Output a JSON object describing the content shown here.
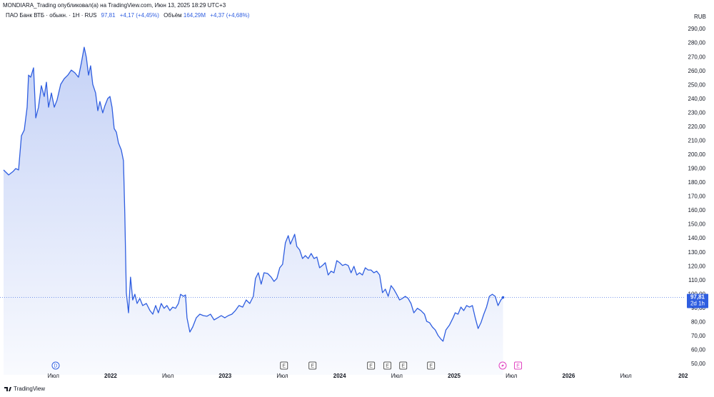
{
  "header": "MONDIARA_Trading опубликовал(а) на TradingView.com, Июн 13, 2025 18:29 UTC+3",
  "chart_data": {
    "type": "area",
    "x": [
      2021.065,
      2021.109,
      2021.146,
      2021.171,
      2021.196,
      2021.221,
      2021.246,
      2021.271,
      2021.283,
      2021.302,
      2021.327,
      2021.346,
      2021.37,
      2021.395,
      2021.42,
      2021.439,
      2021.458,
      2021.483,
      2021.508,
      2021.532,
      2021.564,
      2021.595,
      2021.626,
      2021.657,
      2021.688,
      2021.719,
      2021.744,
      2021.769,
      2021.788,
      2021.807,
      2021.825,
      2021.844,
      2021.869,
      2021.888,
      2021.906,
      2021.931,
      2021.95,
      2021.975,
      2021.994,
      2022.012,
      2022.031,
      2022.05,
      2022.068,
      2022.093,
      2022.112,
      2022.124,
      2022.137,
      2022.156,
      2022.174,
      2022.193,
      2022.212,
      2022.231,
      2022.255,
      2022.28,
      2022.312,
      2022.343,
      2022.368,
      2022.393,
      2022.417,
      2022.442,
      2022.467,
      2022.492,
      2022.517,
      2022.542,
      2022.567,
      2022.592,
      2022.611,
      2022.636,
      2022.654,
      2022.667,
      2022.692,
      2022.717,
      2022.748,
      2022.779,
      2022.81,
      2022.841,
      2022.872,
      2022.903,
      2022.935,
      2022.966,
      2022.997,
      2023.028,
      2023.059,
      2023.09,
      2023.121,
      2023.153,
      2023.184,
      2023.215,
      2023.246,
      2023.265,
      2023.29,
      2023.315,
      2023.34,
      2023.371,
      2023.402,
      2023.427,
      2023.452,
      2023.477,
      2023.502,
      2023.526,
      2023.551,
      2023.57,
      2023.589,
      2023.607,
      2023.626,
      2023.651,
      2023.676,
      2023.701,
      2023.726,
      2023.751,
      2023.776,
      2023.801,
      2023.825,
      2023.85,
      2023.875,
      2023.9,
      2023.925,
      2023.95,
      2023.975,
      2024.0,
      2024.025,
      2024.05,
      2024.075,
      2024.1,
      2024.125,
      2024.15,
      2024.174,
      2024.199,
      2024.224,
      2024.249,
      2024.274,
      2024.299,
      2024.324,
      2024.349,
      2024.374,
      2024.399,
      2024.424,
      2024.449,
      2024.473,
      2024.498,
      2024.523,
      2024.548,
      2024.573,
      2024.598,
      2024.623,
      2024.648,
      2024.679,
      2024.71,
      2024.741,
      2024.76,
      2024.785,
      2024.81,
      2024.835,
      2024.86,
      2024.885,
      2024.903,
      2024.928,
      2024.96,
      2024.991,
      2025.009,
      2025.034,
      2025.059,
      2025.084,
      2025.109,
      2025.134,
      2025.159,
      2025.184,
      2025.209,
      2025.234,
      2025.259,
      2025.283,
      2025.308,
      2025.333,
      2025.358,
      2025.383,
      2025.408,
      2025.427
    ],
    "series": [
      {
        "name": "ПАО Банк ВТБ · обыкн. · 1H · RUS",
        "color": "#2f5ee0",
        "values": [
          189.2,
          185.6,
          188.0,
          190.2,
          189.2,
          213.7,
          217.8,
          234.2,
          257.2,
          255.7,
          262.4,
          226.5,
          234.2,
          249.6,
          241.9,
          252.1,
          234.2,
          244.4,
          234.2,
          239.3,
          250.6,
          254.7,
          257.2,
          260.8,
          258.8,
          255.7,
          265.9,
          277.2,
          270.0,
          257.2,
          263.9,
          250.6,
          244.4,
          231.7,
          238.3,
          230.1,
          235.2,
          240.4,
          241.9,
          234.2,
          218.9,
          216.3,
          208.6,
          203.5,
          195.8,
          157.5,
          101.2,
          86.8,
          112.4,
          96.0,
          100.1,
          93.5,
          97.1,
          92.0,
          93.5,
          88.4,
          85.8,
          92.0,
          86.8,
          93.5,
          90.0,
          92.0,
          88.4,
          90.9,
          90.0,
          93.5,
          100.1,
          98.6,
          99.6,
          83.2,
          73.0,
          76.6,
          83.2,
          85.8,
          84.8,
          84.3,
          85.8,
          81.7,
          83.2,
          84.8,
          83.2,
          84.8,
          85.8,
          88.4,
          92.0,
          90.9,
          96.0,
          93.5,
          98.6,
          111.4,
          115.5,
          107.3,
          115.5,
          115.0,
          112.4,
          109.3,
          111.4,
          119.1,
          121.6,
          137.0,
          142.1,
          136.0,
          139.6,
          143.1,
          134.4,
          131.9,
          125.7,
          127.8,
          125.7,
          129.3,
          125.7,
          126.8,
          119.1,
          120.7,
          122.7,
          113.9,
          116.6,
          115.5,
          124.2,
          122.7,
          120.7,
          121.6,
          120.7,
          115.5,
          120.1,
          113.9,
          115.5,
          113.9,
          119.1,
          117.5,
          117.5,
          115.5,
          116.6,
          113.9,
          101.2,
          103.7,
          98.6,
          106.3,
          103.7,
          100.1,
          96.0,
          97.1,
          98.6,
          97.1,
          93.5,
          86.8,
          90.0,
          88.4,
          85.8,
          80.7,
          79.7,
          76.6,
          74.5,
          70.5,
          67.9,
          66.4,
          74.5,
          78.1,
          83.2,
          86.8,
          85.8,
          90.9,
          88.4,
          92.0,
          90.9,
          92.0,
          83.2,
          75.5,
          79.7,
          85.8,
          90.9,
          98.6,
          100.1,
          98.6,
          92.0,
          96.0,
          97.81
        ]
      }
    ],
    "xlim": [
      2021.065,
      2027.02
    ],
    "xticks": [
      {
        "value": 2021.5,
        "label": "Июл"
      },
      2022,
      {
        "value": 2022.5,
        "label": "Июл"
      },
      2023,
      {
        "value": 2023.5,
        "label": "Июл"
      },
      2024,
      {
        "value": 2024.5,
        "label": "Июл"
      },
      2025,
      {
        "value": 2025.5,
        "label": "Июл"
      },
      2026,
      {
        "value": 2026.5,
        "label": "Июл"
      },
      {
        "value": 2027,
        "label": "202"
      }
    ],
    "ylim": [
      42.3,
      296.7
    ],
    "yticks": [
      {
        "value": 50,
        "label": "50,00"
      },
      {
        "value": 60,
        "label": "60,00"
      },
      {
        "value": 70,
        "label": "70,00"
      },
      {
        "value": 80,
        "label": "80,00"
      },
      {
        "value": 90,
        "label": "90,00"
      },
      {
        "value": 100,
        "label": "100,00"
      },
      {
        "value": 110,
        "label": "110,00"
      },
      {
        "value": 120,
        "label": "120,00"
      },
      {
        "value": 130,
        "label": "130,00"
      },
      {
        "value": 140,
        "label": "140,00"
      },
      {
        "value": 150,
        "label": "150,00"
      },
      {
        "value": 160,
        "label": "160,00"
      },
      {
        "value": 170,
        "label": "170,00"
      },
      {
        "value": 180,
        "label": "180,00"
      },
      {
        "value": 190,
        "label": "190,00"
      },
      {
        "value": 200,
        "label": "200,00"
      },
      {
        "value": 210,
        "label": "210,00"
      },
      {
        "value": 220,
        "label": "220,00"
      },
      {
        "value": 230,
        "label": "230,00"
      },
      {
        "value": 240,
        "label": "240,00"
      },
      {
        "value": 250,
        "label": "250,00"
      },
      {
        "value": 260,
        "label": "260,00"
      },
      {
        "value": 270,
        "label": "270,00"
      },
      {
        "value": 280,
        "label": "280,00"
      },
      {
        "value": 290,
        "label": "290,00"
      }
    ],
    "y_unit": "RUB",
    "last_price": {
      "value": 97.81,
      "label": "97,81"
    },
    "countdown": "2d 1h",
    "legend": {
      "change": "+4,17 (+4,45%)",
      "volume_label": "Объём",
      "volume": "164,29M",
      "volume_change": "+4,37 (+4,68%)"
    },
    "events": [
      {
        "label": "D",
        "x": 2021.52
      },
      {
        "label": "E",
        "x": 2023.514
      },
      {
        "label": "E",
        "x": 2023.763
      },
      {
        "label": "E",
        "x": 2024.274
      },
      {
        "label": "E",
        "x": 2024.417
      },
      {
        "label": "E",
        "x": 2024.555
      },
      {
        "label": "E",
        "x": 2024.798
      },
      {
        "label": "E",
        "x": 2025.558
      }
    ]
  },
  "footer": "TradingView"
}
